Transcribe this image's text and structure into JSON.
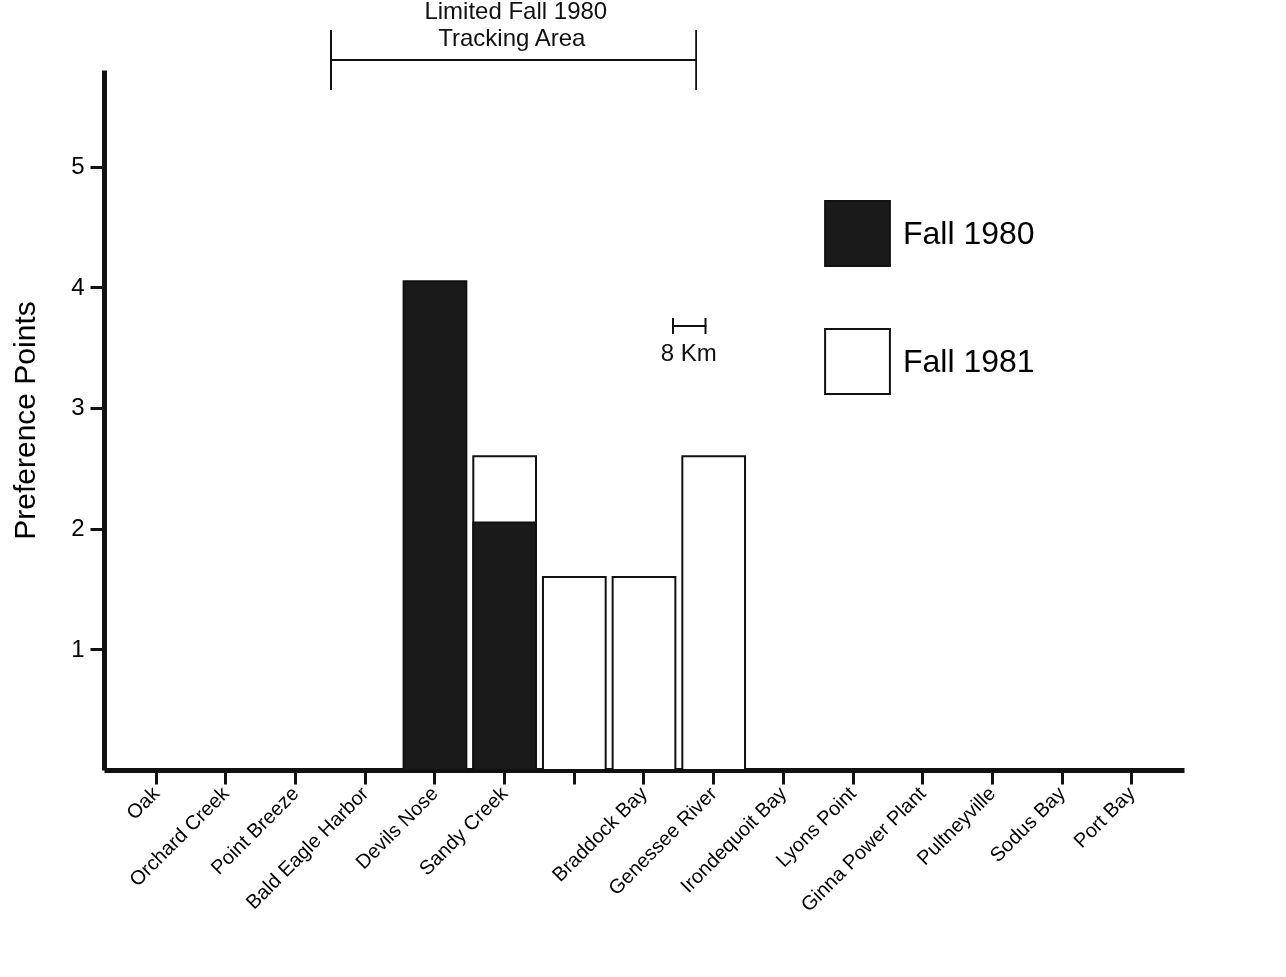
{
  "chart_data": {
    "type": "bar",
    "ylabel": "Preference Points",
    "categories": [
      "Oak",
      "Orchard Creek",
      "Point Breeze",
      "Bald Eagle Harbor",
      "Devils Nose",
      "Sandy Creek",
      null,
      "Braddock Bay",
      "Genessee River",
      "Irondequoit Bay",
      "Lyons Point",
      "Ginna Power Plant",
      "Pultneyville",
      "Sodus Bay",
      "Port Bay"
    ],
    "series": [
      {
        "name": "Fall 1981",
        "color": "#ffffff",
        "values": [
          null,
          null,
          null,
          null,
          null,
          2.6,
          1.6,
          1.6,
          2.6,
          null,
          null,
          null,
          null,
          null,
          null
        ]
      },
      {
        "name": "Fall 1980",
        "color": "#1a1a1a",
        "values": [
          null,
          null,
          null,
          null,
          4.05,
          2.05,
          null,
          null,
          null,
          null,
          null,
          null,
          null,
          null,
          null
        ]
      }
    ],
    "ylim": [
      0,
      5.8
    ],
    "yticks": [
      1,
      2,
      3,
      4,
      5
    ],
    "grid": false,
    "legend": "right",
    "annotations": [
      "Limited Fall 1980 Tracking Area",
      "8 Km"
    ]
  }
}
